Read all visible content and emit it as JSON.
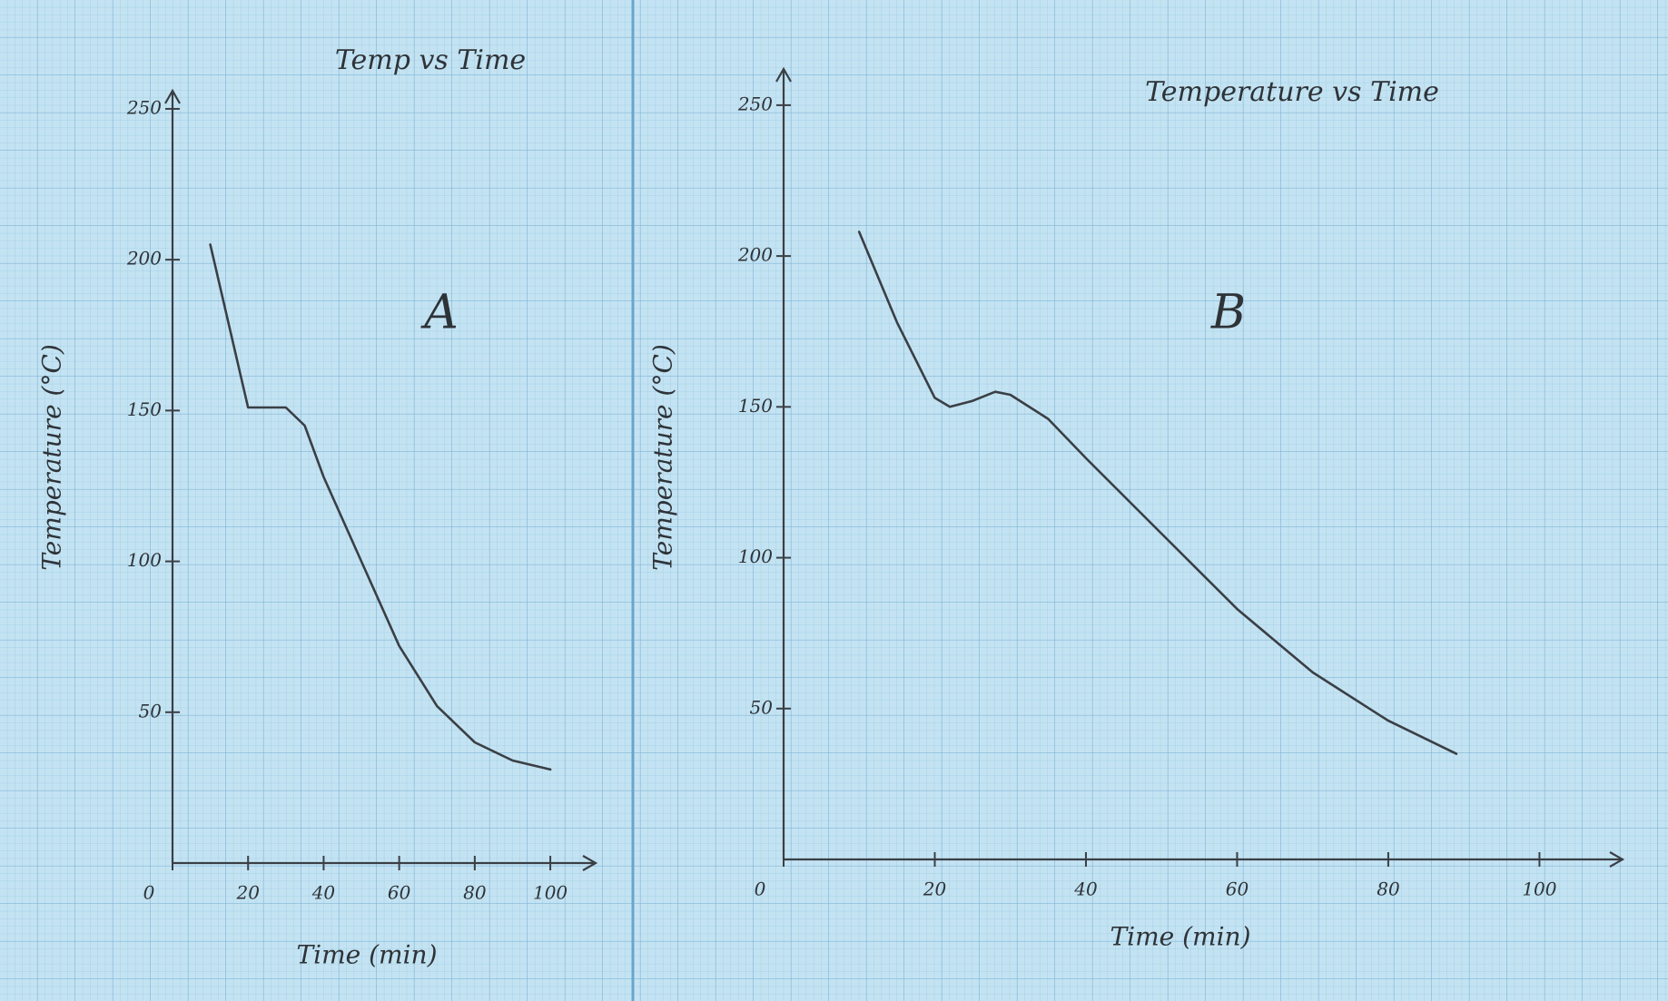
{
  "chart_data": [
    {
      "type": "line",
      "title": "Temp vs Time",
      "annotation": "A",
      "x_label": "Time (min)",
      "y_label": "Temperature (°C)",
      "x": [
        10,
        15,
        20,
        25,
        30,
        35,
        40,
        50,
        60,
        70,
        80,
        90,
        100
      ],
      "series": [
        {
          "color": "#3a3f45",
          "values": [
            205,
            178,
            151,
            151,
            151,
            145,
            128,
            100,
            72,
            52,
            40,
            34,
            31
          ]
        }
      ],
      "xlim": [
        0,
        112
      ],
      "ylim": [
        0,
        256
      ],
      "xticks": [
        0,
        20,
        40,
        60,
        80,
        100
      ],
      "yticks": [
        50,
        100,
        150,
        200,
        250
      ]
    },
    {
      "type": "line",
      "title": "Temperature vs Time",
      "annotation": "B",
      "x_label": "Time (min)",
      "y_label": "Temperature (°C)",
      "x": [
        10,
        15,
        20,
        22,
        25,
        28,
        30,
        35,
        40,
        50,
        60,
        70,
        80,
        89
      ],
      "series": [
        {
          "color": "#3a3f45",
          "values": [
            208,
            178,
            153,
            150,
            152,
            155,
            154,
            146,
            133,
            108,
            83,
            62,
            46,
            35
          ]
        }
      ],
      "xlim": [
        0,
        111
      ],
      "ylim": [
        0,
        262
      ],
      "xticks": [
        0,
        20,
        40,
        60,
        80,
        100
      ],
      "yticks": [
        50,
        100,
        150,
        200,
        250
      ]
    }
  ]
}
